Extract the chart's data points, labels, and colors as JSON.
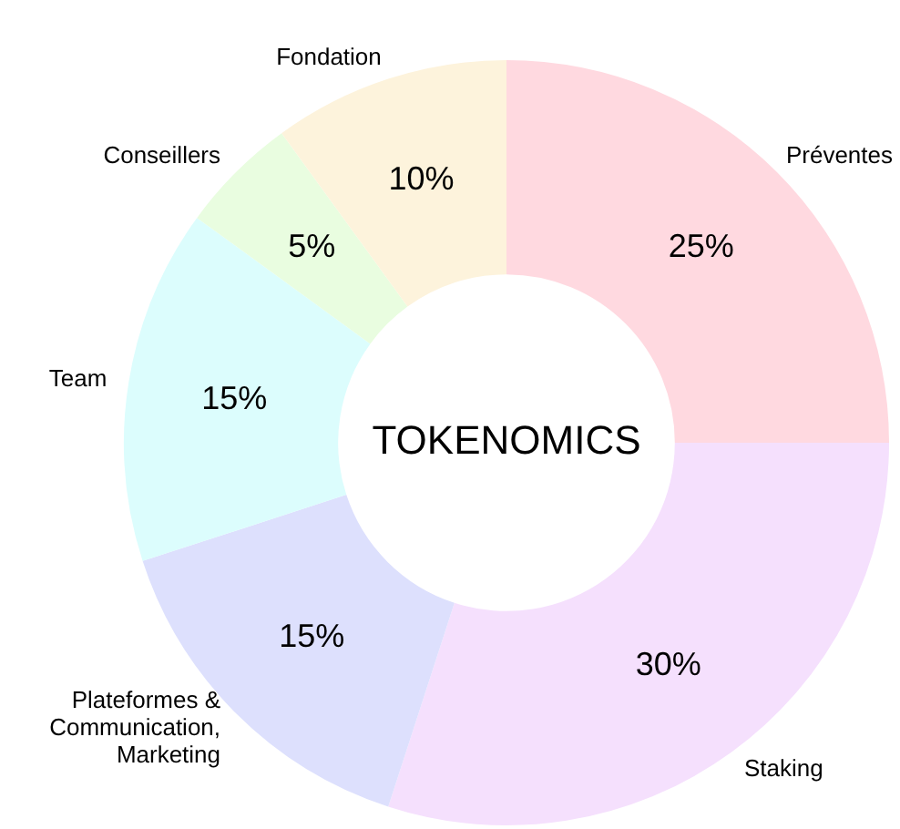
{
  "chart_data": {
    "type": "donut",
    "title": "TOKENOMICS",
    "categories": [
      "Préventes",
      "Staking",
      "Plateformes & Communication, Marketing",
      "Team",
      "Conseillers",
      "Fondation"
    ],
    "values": [
      25,
      30,
      15,
      15,
      5,
      10
    ],
    "colors": [
      "#ffd9e0",
      "#f5e0fd",
      "#dde0fd",
      "#dcfdfd",
      "#e9fde0",
      "#fdf3dc"
    ],
    "value_labels": [
      "25%",
      "30%",
      "15%",
      "15%",
      "5%",
      "10%"
    ],
    "legend": false
  }
}
